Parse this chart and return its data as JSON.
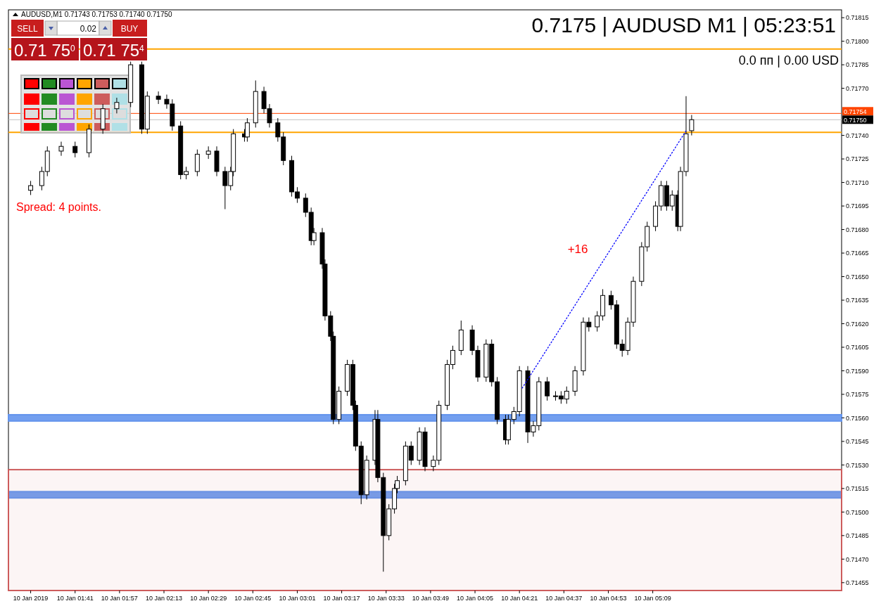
{
  "chart_data": {
    "type": "candlestick",
    "title": "AUDUSD,M1  0.71743 0.71753 0.71740 0.71750",
    "x": [
      "2019-01-10T01:25",
      "2019-01-10T01:29",
      "2019-01-10T01:31",
      "2019-01-10T01:36",
      "2019-01-10T01:41",
      "2019-01-10T01:46",
      "2019-01-10T01:51",
      "2019-01-10T01:56",
      "2019-01-10T02:01",
      "2019-01-10T02:05",
      "2019-01-10T02:07",
      "2019-01-10T02:11",
      "2019-01-10T02:14",
      "2019-01-10T02:16",
      "2019-01-10T02:19",
      "2019-01-10T02:21",
      "2019-01-10T02:25",
      "2019-01-10T02:29",
      "2019-01-10T02:32",
      "2019-01-10T02:35",
      "2019-01-10T02:37",
      "2019-01-10T02:38",
      "2019-01-10T02:42",
      "2019-01-10T02:43",
      "2019-01-10T02:46",
      "2019-01-10T02:49",
      "2019-01-10T02:51",
      "2019-01-10T02:54",
      "2019-01-10T02:56",
      "2019-01-10T02:59",
      "2019-01-10T03:01",
      "2019-01-10T03:04",
      "2019-01-10T03:06",
      "2019-01-10T03:07",
      "2019-01-10T03:10",
      "2019-01-10T03:11",
      "2019-01-10T03:13",
      "2019-01-10T03:14",
      "2019-01-10T03:16",
      "2019-01-10T03:19",
      "2019-01-10T03:21",
      "2019-01-10T03:22",
      "2019-01-10T03:24",
      "2019-01-10T03:26",
      "2019-01-10T03:29",
      "2019-01-10T03:30",
      "2019-01-10T03:32",
      "2019-01-10T03:34",
      "2019-01-10T03:36",
      "2019-01-10T03:37",
      "2019-01-10T03:40",
      "2019-01-10T03:42",
      "2019-01-10T03:45",
      "2019-01-10T03:47",
      "2019-01-10T03:50",
      "2019-01-10T03:52",
      "2019-01-10T03:55",
      "2019-01-10T03:57",
      "2019-01-10T04:00",
      "2019-01-10T04:04",
      "2019-01-10T04:06",
      "2019-01-10T04:09",
      "2019-01-10T04:11",
      "2019-01-10T04:13",
      "2019-01-10T04:16",
      "2019-01-10T04:17",
      "2019-01-10T04:19",
      "2019-01-10T04:21",
      "2019-01-10T04:24",
      "2019-01-10T04:26",
      "2019-01-10T04:28",
      "2019-01-10T04:31",
      "2019-01-10T04:34",
      "2019-01-10T04:36",
      "2019-01-10T04:38",
      "2019-01-10T04:41",
      "2019-01-10T04:44",
      "2019-01-10T04:46",
      "2019-01-10T04:49",
      "2019-01-10T04:51",
      "2019-01-10T04:54",
      "2019-01-10T04:56",
      "2019-01-10T04:58",
      "2019-01-10T05:00",
      "2019-01-10T05:02",
      "2019-01-10T05:05",
      "2019-01-10T05:07",
      "2019-01-10T05:10",
      "2019-01-10T05:12",
      "2019-01-10T05:14",
      "2019-01-10T05:16",
      "2019-01-10T05:18",
      "2019-01-10T05:19",
      "2019-01-10T05:21",
      "2019-01-10T05:23"
    ],
    "ohlc": [
      [
        0.71705,
        0.71711,
        0.71702,
        0.71708
      ],
      [
        0.71708,
        0.7172,
        0.71705,
        0.71717
      ],
      [
        0.71717,
        0.71733,
        0.71714,
        0.7173
      ],
      [
        0.7173,
        0.71736,
        0.71727,
        0.71733
      ],
      [
        0.71733,
        0.71736,
        0.71726,
        0.71729
      ],
      [
        0.71729,
        0.71747,
        0.71726,
        0.71744
      ],
      [
        0.71744,
        0.7176,
        0.71741,
        0.71757
      ],
      [
        0.71757,
        0.71764,
        0.71754,
        0.71761
      ],
      [
        0.71761,
        0.71787,
        0.71758,
        0.71785
      ],
      [
        0.71785,
        0.71787,
        0.71741,
        0.71744
      ],
      [
        0.71744,
        0.71768,
        0.71741,
        0.71765
      ],
      [
        0.71765,
        0.71768,
        0.7176,
        0.71763
      ],
      [
        0.71763,
        0.71766,
        0.71757,
        0.7176
      ],
      [
        0.7176,
        0.71763,
        0.71743,
        0.71746
      ],
      [
        0.71746,
        0.71749,
        0.71712,
        0.71715
      ],
      [
        0.71715,
        0.7172,
        0.71712,
        0.71717
      ],
      [
        0.71717,
        0.71731,
        0.71714,
        0.71728
      ],
      [
        0.71728,
        0.71733,
        0.71725,
        0.7173
      ],
      [
        0.7173,
        0.71733,
        0.71714,
        0.71717
      ],
      [
        0.71717,
        0.7172,
        0.71693,
        0.71708
      ],
      [
        0.71708,
        0.7172,
        0.71705,
        0.71717
      ],
      [
        0.71717,
        0.71744,
        0.71714,
        0.71741
      ],
      [
        0.71741,
        0.71744,
        0.71736,
        0.71739
      ],
      [
        0.71739,
        0.71751,
        0.71736,
        0.71748
      ],
      [
        0.71748,
        0.71775,
        0.71745,
        0.71768
      ],
      [
        0.71768,
        0.71771,
        0.71754,
        0.71757
      ],
      [
        0.71757,
        0.7176,
        0.71745,
        0.71748
      ],
      [
        0.71748,
        0.71751,
        0.71736,
        0.71739
      ],
      [
        0.71739,
        0.71742,
        0.71721,
        0.71724
      ],
      [
        0.71724,
        0.71727,
        0.71701,
        0.71704
      ],
      [
        0.71704,
        0.71707,
        0.71697,
        0.717
      ],
      [
        0.717,
        0.71703,
        0.71688,
        0.71691
      ],
      [
        0.71691,
        0.71694,
        0.7167,
        0.71673
      ],
      [
        0.71673,
        0.71681,
        0.7167,
        0.71678
      ],
      [
        0.71678,
        0.71681,
        0.71655,
        0.71658
      ],
      [
        0.71658,
        0.71661,
        0.71622,
        0.71625
      ],
      [
        0.71625,
        0.71628,
        0.71609,
        0.71612
      ],
      [
        0.71612,
        0.71615,
        0.71556,
        0.71559
      ],
      [
        0.71559,
        0.7158,
        0.71556,
        0.71577
      ],
      [
        0.71577,
        0.71597,
        0.71574,
        0.71594
      ],
      [
        0.71594,
        0.71597,
        0.71565,
        0.71568
      ],
      [
        0.71568,
        0.71571,
        0.71539,
        0.71542
      ],
      [
        0.71542,
        0.71545,
        0.71505,
        0.71511
      ],
      [
        0.71511,
        0.71536,
        0.71508,
        0.71533
      ],
      [
        0.71533,
        0.71565,
        0.7153,
        0.71559
      ],
      [
        0.71559,
        0.71565,
        0.71519,
        0.71522
      ],
      [
        0.71522,
        0.71525,
        0.71462,
        0.71485
      ],
      [
        0.71485,
        0.71505,
        0.71482,
        0.71502
      ],
      [
        0.71502,
        0.71518,
        0.71499,
        0.71515
      ],
      [
        0.71515,
        0.71523,
        0.71512,
        0.7152
      ],
      [
        0.7152,
        0.71545,
        0.71517,
        0.71542
      ],
      [
        0.71542,
        0.71545,
        0.7153,
        0.71533
      ],
      [
        0.71533,
        0.71554,
        0.7153,
        0.71551
      ],
      [
        0.71551,
        0.71554,
        0.71526,
        0.71529
      ],
      [
        0.71529,
        0.71536,
        0.71526,
        0.71533
      ],
      [
        0.71533,
        0.71571,
        0.7153,
        0.71568
      ],
      [
        0.71568,
        0.71597,
        0.71565,
        0.71594
      ],
      [
        0.71594,
        0.71606,
        0.71591,
        0.71603
      ],
      [
        0.71603,
        0.71622,
        0.716,
        0.71616
      ],
      [
        0.71616,
        0.71619,
        0.716,
        0.71603
      ],
      [
        0.71603,
        0.71606,
        0.71583,
        0.71586
      ],
      [
        0.71586,
        0.7161,
        0.71583,
        0.71607
      ],
      [
        0.71607,
        0.7161,
        0.7158,
        0.71583
      ],
      [
        0.71583,
        0.71586,
        0.71556,
        0.71559
      ],
      [
        0.71559,
        0.71562,
        0.71543,
        0.71546
      ],
      [
        0.71546,
        0.71562,
        0.71543,
        0.71559
      ],
      [
        0.71559,
        0.71567,
        0.71556,
        0.71564
      ],
      [
        0.71564,
        0.71593,
        0.71561,
        0.7159
      ],
      [
        0.7159,
        0.71593,
        0.71544,
        0.71551
      ],
      [
        0.71551,
        0.71558,
        0.71548,
        0.71555
      ],
      [
        0.71555,
        0.71586,
        0.71552,
        0.71583
      ],
      [
        0.71583,
        0.71586,
        0.71571,
        0.71574
      ],
      [
        0.71574,
        0.71577,
        0.71571,
        0.71574
      ],
      [
        0.71574,
        0.71577,
        0.71569,
        0.71572
      ],
      [
        0.71572,
        0.7158,
        0.71569,
        0.71577
      ],
      [
        0.71577,
        0.71593,
        0.71574,
        0.7159
      ],
      [
        0.7159,
        0.71624,
        0.71587,
        0.71621
      ],
      [
        0.71621,
        0.71624,
        0.71615,
        0.71618
      ],
      [
        0.71618,
        0.71628,
        0.71615,
        0.71625
      ],
      [
        0.71625,
        0.71642,
        0.71622,
        0.71638
      ],
      [
        0.71638,
        0.71641,
        0.71629,
        0.71632
      ],
      [
        0.71632,
        0.71635,
        0.71604,
        0.71607
      ],
      [
        0.71607,
        0.7161,
        0.71599,
        0.71603
      ],
      [
        0.71603,
        0.71624,
        0.716,
        0.71621
      ],
      [
        0.71621,
        0.7165,
        0.71618,
        0.71647
      ],
      [
        0.71647,
        0.71672,
        0.71644,
        0.71669
      ],
      [
        0.71669,
        0.71685,
        0.71666,
        0.71682
      ],
      [
        0.71682,
        0.71698,
        0.71679,
        0.71695
      ],
      [
        0.71695,
        0.71711,
        0.71692,
        0.71708
      ],
      [
        0.71708,
        0.71711,
        0.71692,
        0.71695
      ],
      [
        0.71695,
        0.71705,
        0.71692,
        0.71702
      ],
      [
        0.71702,
        0.71705,
        0.71679,
        0.71682
      ],
      [
        0.71682,
        0.7172,
        0.71679,
        0.71717
      ],
      [
        0.71717,
        0.71765,
        0.71714,
        0.71741
      ],
      [
        0.71743,
        0.71753,
        0.7174,
        0.7175
      ]
    ],
    "series": [
      {
        "type": "line",
        "color": "#0000ff",
        "line_style": "dotted",
        "x": [
          "2019-01-10T04:22",
          "2019-01-10T05:21"
        ],
        "values": [
          0.71579,
          0.71743
        ]
      }
    ],
    "xlim": [
      "2019-01-10T01:17",
      "2019-01-10T06:17"
    ],
    "xticks": [
      {
        "value": "2019-01-10T01:25",
        "label": "10 Jan 2019"
      },
      {
        "value": "2019-01-10T01:41",
        "label": "10 Jan 01:41"
      },
      {
        "value": "2019-01-10T01:57",
        "label": "10 Jan 01:57"
      },
      {
        "value": "2019-01-10T02:13",
        "label": "10 Jan 02:13"
      },
      {
        "value": "2019-01-10T02:29",
        "label": "10 Jan 02:29"
      },
      {
        "value": "2019-01-10T02:45",
        "label": "10 Jan 02:45"
      },
      {
        "value": "2019-01-10T03:01",
        "label": "10 Jan 03:01"
      },
      {
        "value": "2019-01-10T03:17",
        "label": "10 Jan 03:17"
      },
      {
        "value": "2019-01-10T03:33",
        "label": "10 Jan 03:33"
      },
      {
        "value": "2019-01-10T03:49",
        "label": "10 Jan 03:49"
      },
      {
        "value": "2019-01-10T04:05",
        "label": "10 Jan 04:05"
      },
      {
        "value": "2019-01-10T04:21",
        "label": "10 Jan 04:21"
      },
      {
        "value": "2019-01-10T04:37",
        "label": "10 Jan 04:37"
      },
      {
        "value": "2019-01-10T04:53",
        "label": "10 Jan 04:53"
      },
      {
        "value": "2019-01-10T05:09",
        "label": "10 Jan 05:09"
      }
    ],
    "ylim": [
      0.7145,
      0.7182
    ],
    "yticks": [
      0.71815,
      {
        "value": 0.718,
        "label": "0.71800"
      },
      0.71785,
      {
        "value": 0.7177,
        "label": "0.71770"
      },
      {
        "value": 0.7174,
        "label": "0.71740"
      },
      0.71725,
      {
        "value": 0.7171,
        "label": "0.71710"
      },
      0.71695,
      {
        "value": 0.7168,
        "label": "0.71680"
      },
      0.71665,
      {
        "value": 0.7165,
        "label": "0.71650"
      },
      0.71635,
      {
        "value": 0.7162,
        "label": "0.71620"
      },
      0.71605,
      {
        "value": 0.7159,
        "label": "0.71590"
      },
      0.71575,
      {
        "value": 0.7156,
        "label": "0.71560"
      },
      0.71545,
      {
        "value": 0.7153,
        "label": "0.71530"
      },
      0.71515,
      {
        "value": 0.715,
        "label": "0.71500"
      },
      0.71485,
      {
        "value": 0.7147,
        "label": "0.71470"
      },
      0.71455
    ],
    "ref_lines": [
      {
        "axis": "y",
        "value": 0.71795,
        "color": "#ffa500"
      },
      {
        "axis": "y",
        "value": 0.71742,
        "color": "#ffa500"
      },
      {
        "axis": "y",
        "value": 0.71754,
        "label": "0.71754",
        "color": "#ff4500"
      },
      {
        "axis": "y",
        "value": 0.7175,
        "label": "0.71750",
        "color": "#c0c0c0"
      }
    ],
    "bands": [
      {
        "axis": "y",
        "from": 0.71558,
        "to": 0.71562,
        "color": "#6495ed"
      },
      {
        "axis": "y",
        "from": 0.71509,
        "to": 0.71513,
        "color": "#6495ed"
      },
      {
        "axis": "y",
        "from": 0.7145,
        "to": 0.71527,
        "color": "#cd5c5c"
      }
    ],
    "annotations": [
      "SELL",
      "0.02",
      "BUY",
      "0.71 75$^{0}$",
      "0.71 75$^{4}$",
      "Spread: 4 points.",
      "0.7175 | AUDUSD M1 | 05:23:51",
      "0.0 пп | 0.00 USD",
      "+16"
    ],
    "grid": false
  }
}
